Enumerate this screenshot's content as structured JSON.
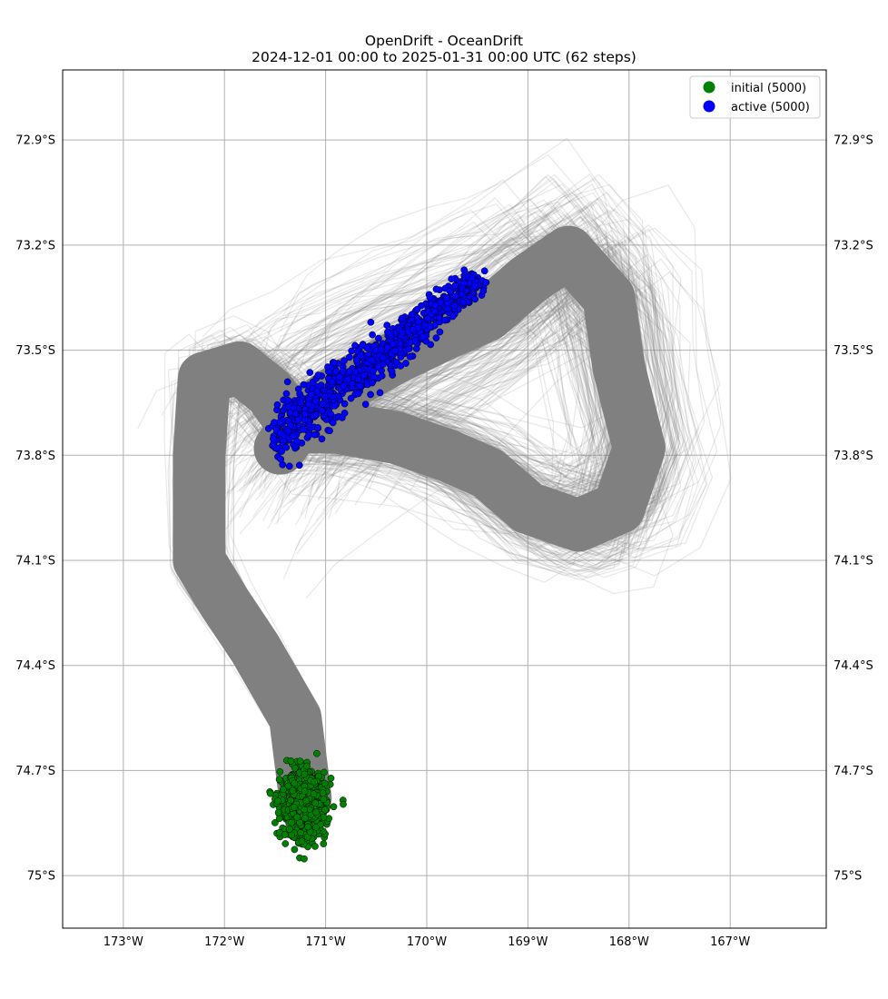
{
  "chart_data": {
    "type": "scatter",
    "title": "OpenDrift - OceanDrift",
    "subtitle": "2024-12-01 00:00 to 2025-01-31 00:00 UTC (62 steps)",
    "xlim": [
      -173.6,
      -166.05
    ],
    "ylim": [
      -75.15,
      -72.7
    ],
    "x_ticks": [
      {
        "value": -173,
        "label": "173°W"
      },
      {
        "value": -172,
        "label": "172°W"
      },
      {
        "value": -171,
        "label": "171°W"
      },
      {
        "value": -170,
        "label": "170°W"
      },
      {
        "value": -169,
        "label": "169°W"
      },
      {
        "value": -168,
        "label": "168°W"
      },
      {
        "value": -167,
        "label": "167°W"
      }
    ],
    "y_ticks": [
      {
        "value": -72.9,
        "label": "72.9°S"
      },
      {
        "value": -73.2,
        "label": "73.2°S"
      },
      {
        "value": -73.5,
        "label": "73.5°S"
      },
      {
        "value": -73.8,
        "label": "73.8°S"
      },
      {
        "value": -74.1,
        "label": "74.1°S"
      },
      {
        "value": -74.4,
        "label": "74.4°S"
      },
      {
        "value": -74.7,
        "label": "74.7°S"
      },
      {
        "value": -75.0,
        "label": "75°S"
      }
    ],
    "grid": true,
    "legend_position": "top-right",
    "series": [
      {
        "name": "initial (5000)",
        "color": "#008000",
        "center": [
          -171.22,
          -74.8
        ],
        "spread": [
          0.2,
          0.06
        ]
      },
      {
        "name": "active (5000)",
        "color": "#0000ff",
        "center": [
          -171.05,
          -73.58
        ],
        "spread": [
          0.35,
          0.07
        ]
      }
    ],
    "trajectories": {
      "color": "#808080",
      "path": [
        [
          -171.2,
          -74.78
        ],
        [
          -171.3,
          -74.55
        ],
        [
          -171.7,
          -74.35
        ],
        [
          -172.0,
          -74.22
        ],
        [
          -172.25,
          -74.1
        ],
        [
          -172.25,
          -73.8
        ],
        [
          -172.2,
          -73.58
        ],
        [
          -171.85,
          -73.55
        ],
        [
          -171.55,
          -73.62
        ],
        [
          -171.3,
          -73.72
        ],
        [
          -170.9,
          -73.72
        ],
        [
          -170.3,
          -73.75
        ],
        [
          -169.8,
          -73.8
        ],
        [
          -169.4,
          -73.85
        ],
        [
          -169.0,
          -73.95
        ],
        [
          -168.5,
          -74.0
        ],
        [
          -168.1,
          -73.95
        ],
        [
          -167.9,
          -73.78
        ],
        [
          -168.1,
          -73.55
        ],
        [
          -168.2,
          -73.35
        ],
        [
          -168.6,
          -73.22
        ],
        [
          -169.0,
          -73.3
        ],
        [
          -169.4,
          -73.4
        ],
        [
          -169.8,
          -73.45
        ],
        [
          -170.3,
          -73.52
        ],
        [
          -170.8,
          -73.6
        ],
        [
          -171.2,
          -73.68
        ],
        [
          -171.45,
          -73.78
        ]
      ]
    }
  }
}
